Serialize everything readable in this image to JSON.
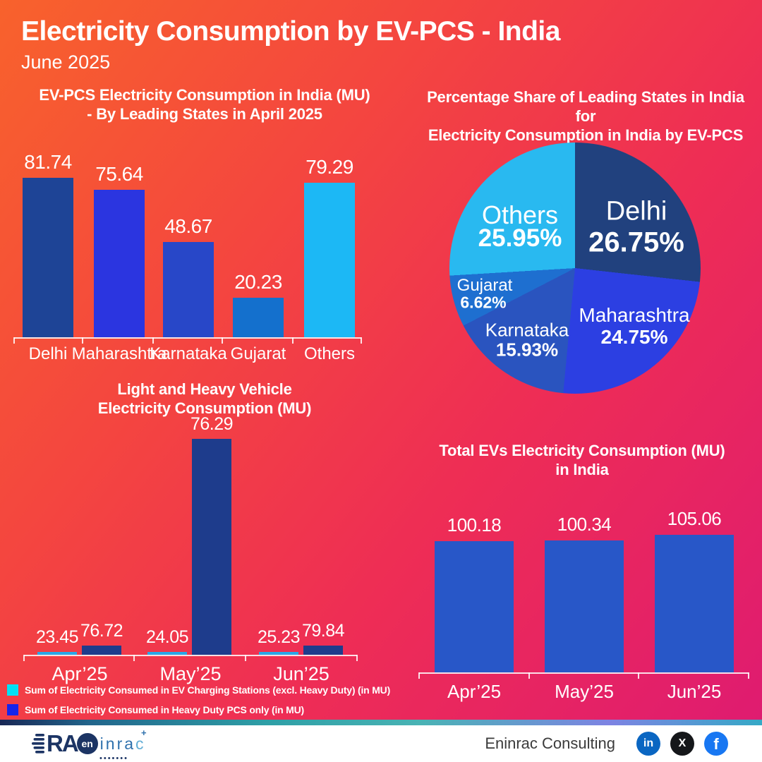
{
  "header": {
    "title": "Electricity Consumption by EV-PCS - India",
    "subtitle": "June 2025"
  },
  "background": {
    "gradient_from": "#f8622c",
    "gradient_mid": "#ee2d55",
    "gradient_to": "#de1a72"
  },
  "chart_data": [
    {
      "id": "state_bar_apr2025",
      "type": "bar",
      "title": "EV-PCS Electricity Consumption in India (MU) - By Leading States in April 2025",
      "title_line1": "EV-PCS Electricity Consumption in India (MU)",
      "title_line2": "-  By Leading States in April 2025",
      "categories": [
        "Delhi",
        "Maharashtra",
        "Karnataka",
        "Gujarat",
        "Others"
      ],
      "values": [
        81.74,
        75.64,
        48.67,
        20.23,
        79.29
      ],
      "bar_colors": [
        "#1e4496",
        "#2b35e0",
        "#2847c8",
        "#1470cd",
        "#1cb8f5"
      ],
      "xlabel": "",
      "ylabel": "",
      "ylim": [
        0,
        90
      ],
      "grid": false,
      "value_labels": true
    },
    {
      "id": "state_share_pie",
      "type": "pie",
      "title": "Percentage Share of Leading States in India for Electricity Consumption in India by EV-PCS",
      "title_line1": "Percentage Share of Leading States in India for",
      "title_line2": "Electricity Consumption in India by EV-PCS",
      "slices": [
        {
          "label": "Delhi",
          "value": 26.75,
          "color": "#21417e"
        },
        {
          "label": "Maharashtra",
          "value": 24.75,
          "color": "#2c3fe2"
        },
        {
          "label": "Karnataka",
          "value": 15.93,
          "color": "#2a54bf"
        },
        {
          "label": "Gujarat",
          "value": 6.62,
          "color": "#1e6fd0"
        },
        {
          "label": "Others",
          "value": 25.95,
          "color": "#29b9f0"
        }
      ],
      "start_angle": "top",
      "direction": "clockwise",
      "labels_inside": true
    },
    {
      "id": "light_heavy_vehicle_bar",
      "type": "bar",
      "title": "Light and Heavy Vehicle Electricity Consumption (MU)",
      "title_line1": "Light and Heavy Vehicle",
      "title_line2": "Electricity Consumption (MU)",
      "categories": [
        "Apr’25",
        "May’25",
        "Jun’25"
      ],
      "series": [
        {
          "name": "Sum of Electricity Consumed in EV Charging Stations (excl. Heavy Duty) (in MU)",
          "color": "#29a8e8",
          "swatch_color": "#00e0f5",
          "values": [
            23.45,
            24.05,
            25.23
          ]
        },
        {
          "name": "Sum of Electricity Consumed in Heavy Duty PCS only (in MU)",
          "color": "#1e3c8c",
          "swatch_color": "#1724ea",
          "values": [
            76.72,
            76.29,
            79.84
          ]
        }
      ],
      "legend_position": "bottom-left",
      "value_labels": true
    },
    {
      "id": "total_ev_bar",
      "type": "bar",
      "title": "Total EVs Electricity Consumption (MU) in India",
      "title_line1": "Total EVs Electricity Consumption (MU)",
      "title_line2": "in India",
      "categories": [
        "Apr’25",
        "May’25",
        "Jun’25"
      ],
      "values": [
        100.18,
        100.34,
        105.06
      ],
      "bar_colors": [
        "#2857c8",
        "#2857c8",
        "#2857c8"
      ],
      "xlabel": "",
      "ylabel": "",
      "ylim": [
        0,
        110
      ],
      "grid": false,
      "value_labels": true
    }
  ],
  "footer": {
    "brand_text": "Eninrac Consulting",
    "logo": {
      "prefix": "RA",
      "circle_text": "en",
      "suffix": "inra",
      "last_letter": "c",
      "plus": "+",
      "dots": "•••••••"
    },
    "social": [
      {
        "name": "linkedin",
        "glyph": "in",
        "color": "#0a66c2"
      },
      {
        "name": "x",
        "glyph": "X",
        "color": "#15171a"
      },
      {
        "name": "facebook",
        "glyph": "f",
        "color": "#1877f2"
      }
    ]
  }
}
